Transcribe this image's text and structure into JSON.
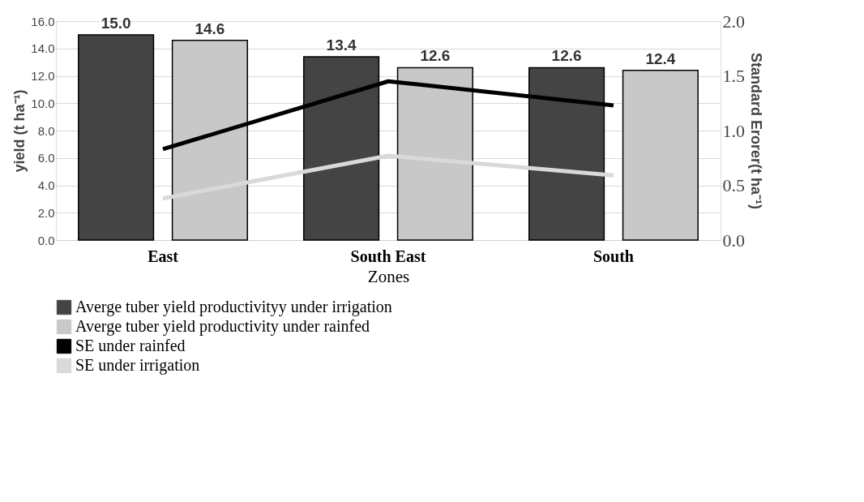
{
  "chart_data": {
    "type": "bar",
    "categories": [
      "East",
      "South East",
      "South"
    ],
    "xlabel": "Zones",
    "ylabel": "yield (t ha⁻¹)",
    "y2label": "Standard Erorer(t ha⁻¹)",
    "ylim": [
      0,
      16
    ],
    "yticks": [
      {
        "value": 0,
        "label": "0.0"
      },
      {
        "value": 2,
        "label": "2.0"
      },
      {
        "value": 4,
        "label": "4.0"
      },
      {
        "value": 6,
        "label": "6.0"
      },
      {
        "value": 8,
        "label": "8.0"
      },
      {
        "value": 10,
        "label": "10.0"
      },
      {
        "value": 12,
        "label": "12.0"
      },
      {
        "value": 14,
        "label": "14.0"
      },
      {
        "value": 16,
        "label": "16.0"
      }
    ],
    "y2lim": [
      0,
      2
    ],
    "y2ticks": [
      {
        "value": 0,
        "label": "0.0"
      },
      {
        "value": 0.5,
        "label": "0.5"
      },
      {
        "value": 1,
        "label": "1.0"
      },
      {
        "value": 1.5,
        "label": "1.5"
      },
      {
        "value": 2,
        "label": "2.0"
      }
    ],
    "series": [
      {
        "name": "Averge tuber yield  productivityy under irrigation",
        "color": "#444444",
        "values": [
          15.0,
          13.4,
          12.6
        ],
        "value_labels": [
          "15.0",
          "13.4",
          "12.6"
        ]
      },
      {
        "name": "Averge tuber yield  productivity  under rainfed",
        "color": "#c8c8c8",
        "values": [
          14.6,
          12.6,
          12.4
        ],
        "value_labels": [
          "14.6",
          "12.6",
          "12.4"
        ]
      },
      {
        "name": "SE under rainfed",
        "type": "line",
        "axis": "y2",
        "color": "#000000",
        "values": [
          0.83,
          1.45,
          1.23
        ]
      },
      {
        "name": "SE under irrigation",
        "type": "line",
        "axis": "y2",
        "color": "#d9d9d9",
        "values": [
          0.38,
          0.77,
          0.59
        ]
      }
    ],
    "grid": "y",
    "legend": "bottom",
    "line_style": "solid",
    "marker": "none"
  }
}
